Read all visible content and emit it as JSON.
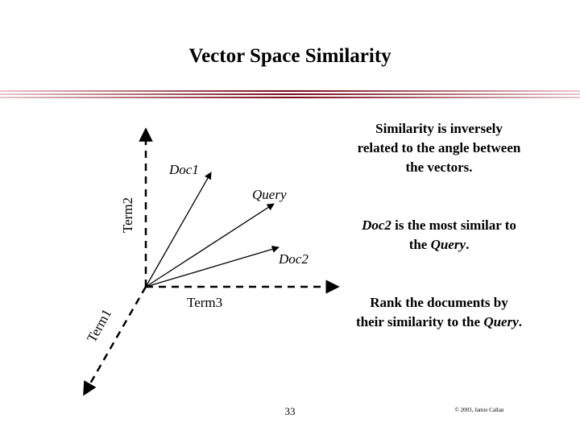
{
  "slide": {
    "title": "Vector Space Similarity",
    "page_number": "33",
    "copyright": "© 2003, Jamie Callan"
  },
  "diagram": {
    "axis_labels": {
      "term1": "Term1",
      "term2": "Term2",
      "term3": "Term3"
    },
    "vectors": {
      "doc1": "Doc1",
      "query": "Query",
      "doc2": "Doc2"
    }
  },
  "notes": {
    "note1": "Similarity is inversely related to the angle between the vectors.",
    "note2": {
      "doc": "Doc2",
      "mid": " is the most similar to the ",
      "query": "Query",
      "end": "."
    },
    "note3": {
      "pre": "Rank the documents by their similarity to the ",
      "query": "Query",
      "end": "."
    }
  },
  "colors": {
    "rule_dark": "#7a0a18",
    "rule_light": "#c98a94"
  }
}
